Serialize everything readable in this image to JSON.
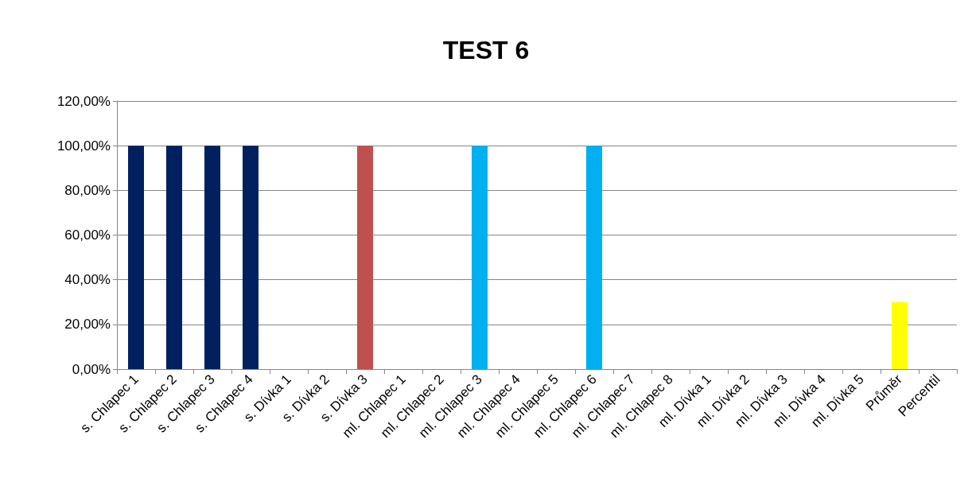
{
  "chart_data": {
    "type": "bar",
    "title": "TEST 6",
    "categories": [
      "s. Chlapec 1",
      "s. Chlapec 2",
      "s. Chlapec 3",
      "s. Chlapec 4",
      "s. Dívka 1",
      "s. Dívka 2",
      "s. Dívka 3",
      "ml. Chlapec 1",
      "ml. Chlapec 2",
      "ml. Chlapec 3",
      "ml. Chlapec 4",
      "ml. Chlapec 5",
      "ml. Chlapec 6",
      "ml. Chlapec 7",
      "ml. Chlapec 8",
      "ml. Dívka 1",
      "ml. Dívka 2",
      "ml. Dívka 3",
      "ml. Dívka 4",
      "ml. Dívka 5",
      "Průměr",
      "Percentil"
    ],
    "values": [
      100,
      100,
      100,
      100,
      0,
      0,
      100,
      0,
      0,
      100,
      0,
      0,
      100,
      0,
      0,
      0,
      0,
      0,
      0,
      0,
      30,
      0
    ],
    "colors": [
      "#002060",
      "#002060",
      "#002060",
      "#002060",
      "#c0504d",
      "#c0504d",
      "#c0504d",
      "#00b0f0",
      "#00b0f0",
      "#00b0f0",
      "#00b0f0",
      "#00b0f0",
      "#00b0f0",
      "#00b0f0",
      "#00b0f0",
      "#00b0f0",
      "#00b0f0",
      "#00b0f0",
      "#00b0f0",
      "#00b0f0",
      "#ffff00",
      "#ffff00"
    ],
    "ylim": [
      0,
      120
    ],
    "yticks": [
      {
        "value": 0,
        "label": "0,00%"
      },
      {
        "value": 20,
        "label": "20,00%"
      },
      {
        "value": 40,
        "label": "40,00%"
      },
      {
        "value": 60,
        "label": "60,00%"
      },
      {
        "value": 80,
        "label": "80,00%"
      },
      {
        "value": 100,
        "label": "100,00%"
      },
      {
        "value": 120,
        "label": "120,00%"
      }
    ],
    "grid": "y"
  }
}
